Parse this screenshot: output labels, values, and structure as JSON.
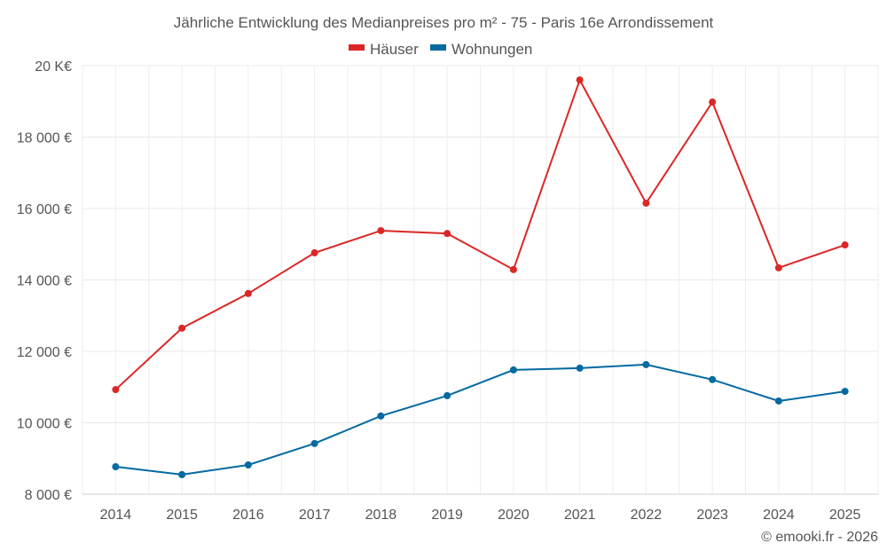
{
  "chart_data": {
    "type": "line",
    "title": "Jährliche Entwicklung des Medianpreises pro m² - 75 - Paris 16e Arrondissement",
    "xlabel": "",
    "ylabel": "",
    "categories": [
      "2014",
      "2015",
      "2016",
      "2017",
      "2018",
      "2019",
      "2020",
      "2021",
      "2022",
      "2023",
      "2024",
      "2025"
    ],
    "ylim": [
      8000,
      20000
    ],
    "yticks": [
      8000,
      10000,
      12000,
      14000,
      16000,
      18000,
      20000
    ],
    "ytick_labels": [
      "8 000 €",
      "10 000 €",
      "12 000 €",
      "14 000 €",
      "16 000 €",
      "18 000 €",
      "20 K€"
    ],
    "grid": true,
    "legend_position": "top-center",
    "series": [
      {
        "name": "Häuser",
        "color": "#dc2626",
        "values": [
          10930,
          12650,
          13620,
          14760,
          15380,
          15300,
          14290,
          19600,
          16150,
          18980,
          14340,
          14980
        ]
      },
      {
        "name": "Wohnungen",
        "color": "#0369a1",
        "values": [
          8770,
          8550,
          8820,
          9420,
          10190,
          10760,
          11480,
          11530,
          11630,
          11210,
          10610,
          10880
        ]
      }
    ],
    "credit": "© emooki.fr - 2026"
  }
}
